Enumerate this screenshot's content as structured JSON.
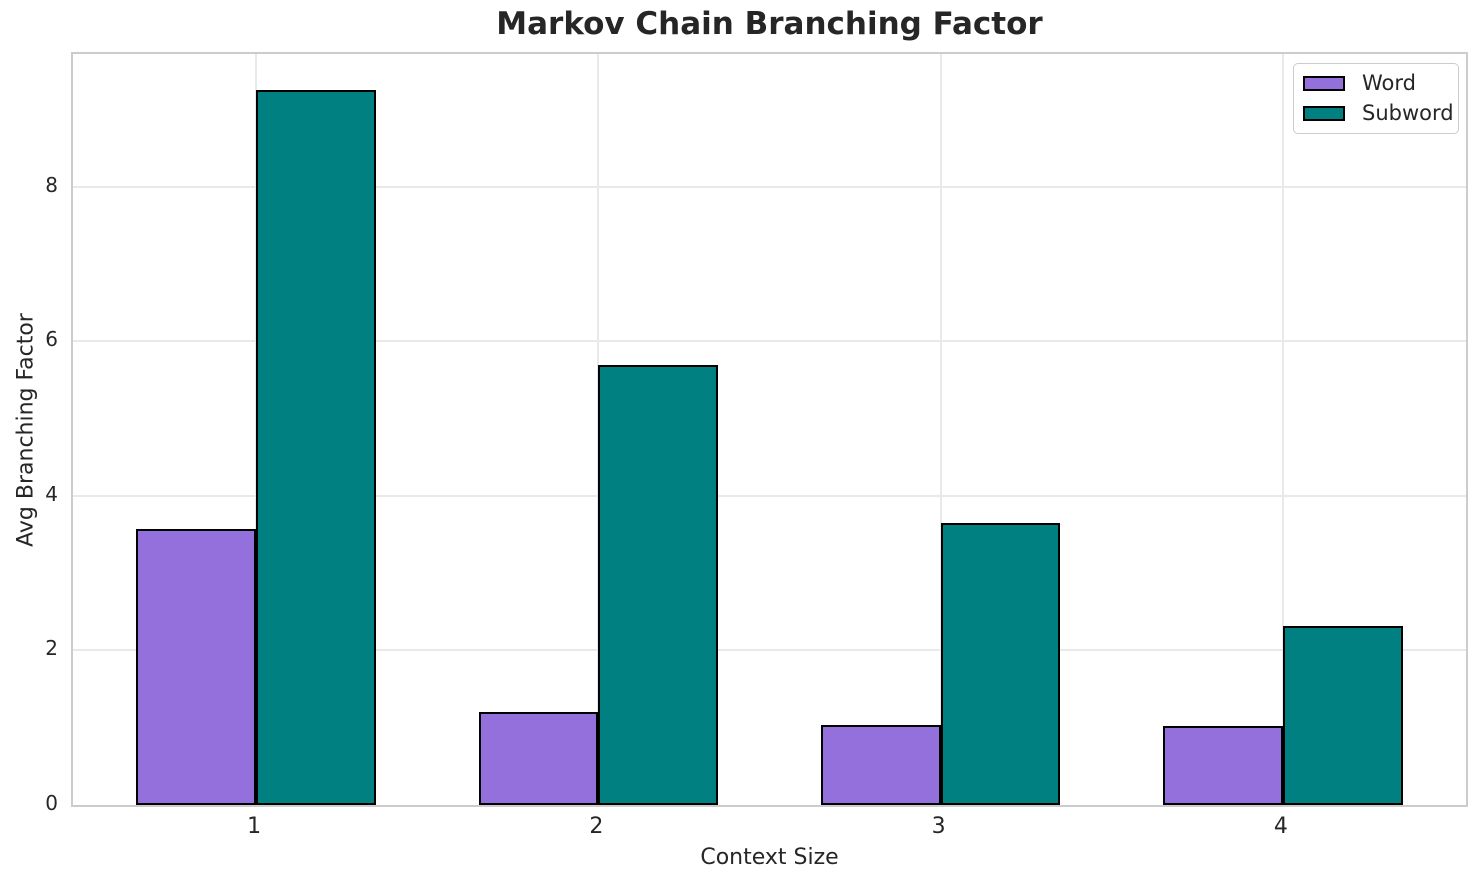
{
  "chart_data": {
    "type": "bar",
    "title": "Markov Chain Branching Factor",
    "xlabel": "Context Size",
    "ylabel": "Avg Branching Factor",
    "categories": [
      "1",
      "2",
      "3",
      "4"
    ],
    "series": [
      {
        "name": "Word",
        "color": "#9370DB",
        "values": [
          3.57,
          1.21,
          1.03,
          1.02
        ]
      },
      {
        "name": "Subword",
        "color": "#008080",
        "values": [
          9.26,
          5.69,
          3.65,
          2.32
        ]
      }
    ],
    "ylim": [
      0,
      9.72
    ],
    "yticks": [
      0,
      2,
      4,
      6,
      8
    ],
    "xlim": [
      -0.535,
      3.535
    ],
    "bar_width": 0.35,
    "bar_edge_color": "#000000",
    "grid": true,
    "legend_position": "upper right"
  },
  "colors": {
    "grid": "#e9e9e9",
    "spine": "#cccccc",
    "text": "#262626",
    "background": "#ffffff"
  }
}
